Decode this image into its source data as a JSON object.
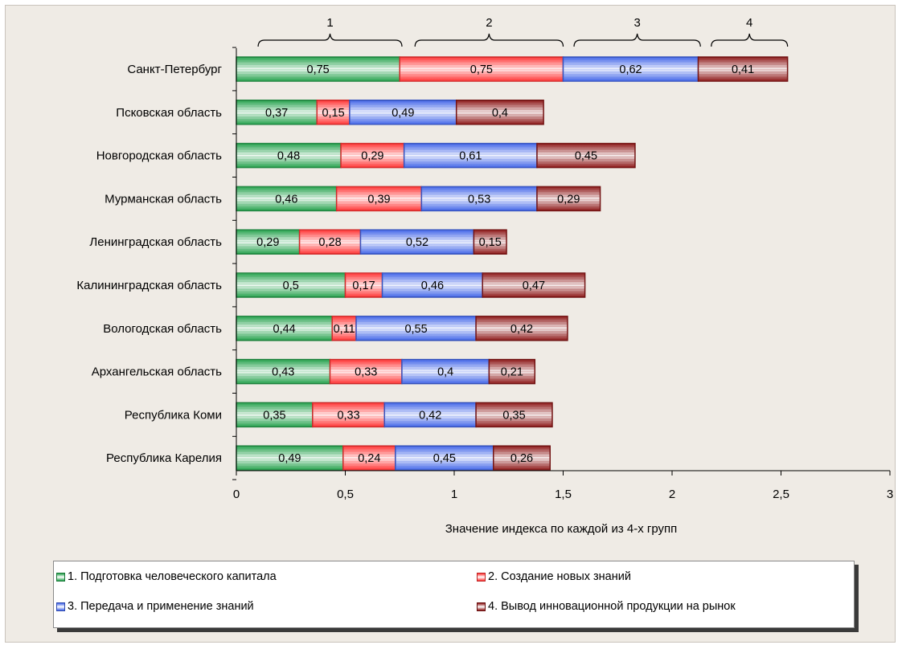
{
  "chart_data": {
    "type": "bar",
    "orientation": "horizontal",
    "stacked": true,
    "categories": [
      "Санкт-Петербург",
      "Псковская область",
      "Новгородская область",
      "Мурманская область",
      "Ленинградская область",
      "Калининградская область",
      "Вологодская область",
      "Архангельская область",
      "Республика Коми",
      "Республика Карелия"
    ],
    "series": [
      {
        "name": "1. Подготовка человеческого капитала",
        "color": "#22a04a",
        "values": [
          0.75,
          0.37,
          0.48,
          0.46,
          0.29,
          0.5,
          0.44,
          0.43,
          0.35,
          0.49
        ]
      },
      {
        "name": "2. Создание новых знаний",
        "color": "#ff3030",
        "values": [
          0.75,
          0.15,
          0.29,
          0.39,
          0.28,
          0.17,
          0.11,
          0.33,
          0.33,
          0.24
        ]
      },
      {
        "name": "3. Передача и применение знаний",
        "color": "#3f63e8",
        "values": [
          0.62,
          0.49,
          0.61,
          0.53,
          0.52,
          0.46,
          0.55,
          0.4,
          0.42,
          0.45
        ]
      },
      {
        "name": "4. Вывод инновационной продукции на рынок",
        "color": "#8b1414",
        "values": [
          0.41,
          0.4,
          0.45,
          0.29,
          0.15,
          0.47,
          0.42,
          0.21,
          0.35,
          0.26
        ]
      }
    ],
    "data_labels": [
      [
        "0,75",
        "0,37",
        "0,48",
        "0,46",
        "0,29",
        "0,5",
        "0,44",
        "0,43",
        "0,35",
        "0,49"
      ],
      [
        "0,75",
        "0,15",
        "0,29",
        "0,39",
        "0,28",
        "0,17",
        "0,11",
        "0,33",
        "0,33",
        "0,24"
      ],
      [
        "0,62",
        "0,49",
        "0,61",
        "0,53",
        "0,52",
        "0,46",
        "0,55",
        "0,4",
        "0,42",
        "0,45"
      ],
      [
        "0,41",
        "0,4",
        "0,45",
        "0,29",
        "0,15",
        "0,47",
        "0,42",
        "0,21",
        "0,35",
        "0,26"
      ]
    ],
    "xlim": [
      0,
      3
    ],
    "x_ticks": [
      0,
      0.5,
      1,
      1.5,
      2,
      2.5,
      3
    ],
    "x_tick_labels": [
      "0",
      "0,5",
      "1",
      "1,5",
      "2",
      "2,5",
      "3"
    ],
    "xlabel": "Значение индекса по каждой из 4-х групп",
    "ylabel": "",
    "grid": false,
    "legend_position": "bottom",
    "group_brackets": [
      {
        "label": "1",
        "x_start": 0.1,
        "x_end": 0.76
      },
      {
        "label": "2",
        "x_start": 0.82,
        "x_end": 1.5
      },
      {
        "label": "3",
        "x_start": 1.55,
        "x_end": 2.13
      },
      {
        "label": "4",
        "x_start": 2.18,
        "x_end": 2.53
      }
    ]
  }
}
